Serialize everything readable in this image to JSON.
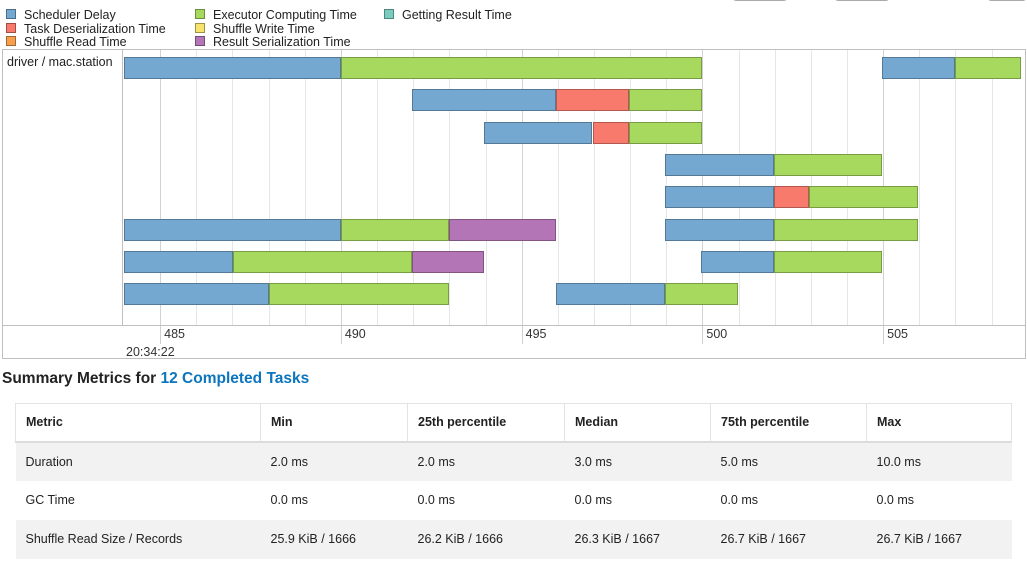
{
  "legend": [
    {
      "label": "Scheduler Delay",
      "color": "#75a8d1"
    },
    {
      "label": "Task Deserialization Time",
      "color": "#f87a6c"
    },
    {
      "label": "Shuffle Read Time",
      "color": "#f6a04f"
    },
    {
      "label": "Executor Computing Time",
      "color": "#a7d95e"
    },
    {
      "label": "Shuffle Write Time",
      "color": "#f5e36b"
    },
    {
      "label": "Result Serialization Time",
      "color": "#b475b6"
    },
    {
      "label": "Getting Result Time",
      "color": "#79ccbf"
    }
  ],
  "timeline": {
    "group_label": "driver / mac.station",
    "axis_major_label": "20:34:22",
    "ticks": [
      "485",
      "490",
      "495",
      "500",
      "505"
    ],
    "tasks": [
      {
        "segments": [
          {
            "phase": 0,
            "start": 484.0,
            "end": 490.0
          },
          {
            "phase": 3,
            "start": 490.0,
            "end": 500.0
          }
        ]
      },
      {
        "segments": [
          {
            "phase": 0,
            "start": 491.97,
            "end": 495.95
          },
          {
            "phase": 1,
            "start": 495.95,
            "end": 497.96
          },
          {
            "phase": 3,
            "start": 497.96,
            "end": 500.0
          }
        ]
      },
      {
        "segments": [
          {
            "phase": 0,
            "start": 493.96,
            "end": 496.96
          },
          {
            "phase": 1,
            "start": 496.96,
            "end": 497.96
          },
          {
            "phase": 3,
            "start": 497.96,
            "end": 500.0
          }
        ]
      },
      {
        "segments": [
          {
            "phase": 0,
            "start": 498.96,
            "end": 501.97
          },
          {
            "phase": 3,
            "start": 501.97,
            "end": 504.98
          }
        ]
      },
      {
        "segments": [
          {
            "phase": 0,
            "start": 498.96,
            "end": 501.97
          },
          {
            "phase": 1,
            "start": 501.97,
            "end": 502.96
          },
          {
            "phase": 3,
            "start": 502.96,
            "end": 505.97
          }
        ]
      },
      {
        "segments": [
          {
            "phase": 0,
            "start": 484.0,
            "end": 490.0
          },
          {
            "phase": 3,
            "start": 490.0,
            "end": 492.99
          },
          {
            "phase": 5,
            "start": 492.99,
            "end": 495.95
          }
        ]
      },
      {
        "segments": [
          {
            "phase": 0,
            "start": 498.96,
            "end": 501.97
          },
          {
            "phase": 3,
            "start": 501.97,
            "end": 505.97
          }
        ]
      },
      {
        "segments": [
          {
            "phase": 0,
            "start": 484.0,
            "end": 487.01
          },
          {
            "phase": 3,
            "start": 487.01,
            "end": 491.97
          },
          {
            "phase": 5,
            "start": 491.97,
            "end": 493.96
          }
        ]
      },
      {
        "segments": [
          {
            "phase": 0,
            "start": 499.97,
            "end": 501.97
          },
          {
            "phase": 3,
            "start": 501.97,
            "end": 504.98
          }
        ]
      },
      {
        "segments": [
          {
            "phase": 0,
            "start": 484.0,
            "end": 488.01
          },
          {
            "phase": 3,
            "start": 488.01,
            "end": 492.99
          }
        ]
      },
      {
        "segments": [
          {
            "phase": 0,
            "start": 495.95,
            "end": 498.96
          },
          {
            "phase": 3,
            "start": 498.96,
            "end": 500.99
          }
        ]
      },
      {
        "segments": [
          {
            "phase": 0,
            "start": 504.98,
            "end": 506.98
          },
          {
            "phase": 3,
            "start": 506.98,
            "end": 508.8
          }
        ]
      }
    ]
  },
  "summary": {
    "title_prefix": "Summary Metrics for ",
    "title_link": "12 Completed Tasks",
    "headers": [
      "Metric",
      "Min",
      "25th percentile",
      "Median",
      "75th percentile",
      "Max"
    ],
    "rows": [
      [
        "Duration",
        "2.0 ms",
        "2.0 ms",
        "3.0 ms",
        "5.0 ms",
        "10.0 ms"
      ],
      [
        "GC Time",
        "0.0 ms",
        "0.0 ms",
        "0.0 ms",
        "0.0 ms",
        "0.0 ms"
      ],
      [
        "Shuffle Read Size / Records",
        "25.9 KiB / 1666",
        "26.2 KiB / 1666",
        "26.3 KiB / 1667",
        "26.7 KiB / 1667",
        "26.7 KiB / 1667"
      ]
    ]
  }
}
